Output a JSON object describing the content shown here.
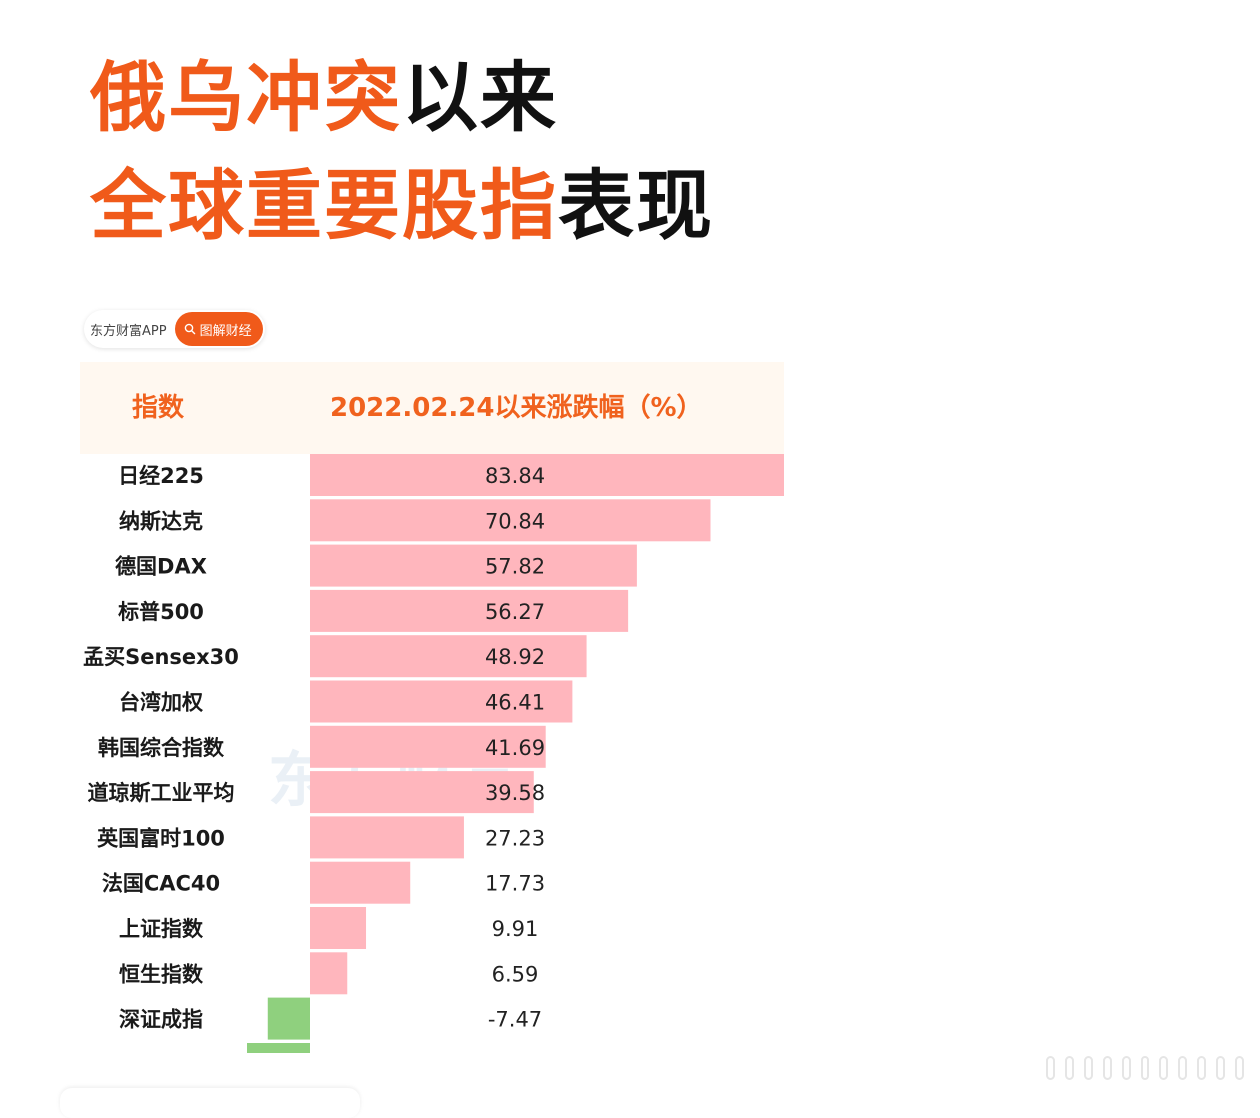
{
  "headline": {
    "line1_highlight": "俄乌冲突",
    "line1_rest": "以来",
    "line2_highlight": "全球重要股指",
    "line2_rest": "表现"
  },
  "source": {
    "app_name": "东方财富APP",
    "pill_label": "图解财经",
    "pill_icon": "search-icon"
  },
  "watermark": "东方财富",
  "colors": {
    "accent": "#f05a1a",
    "positive_bar": "#ffb6bd",
    "negative_bar": "#8fd07e"
  },
  "chart_data": {
    "type": "bar",
    "orientation": "horizontal",
    "columns": [
      "指数",
      "2022.02.24以来涨跌幅（%）"
    ],
    "categories": [
      "日经225",
      "纳斯达克",
      "德国DAX",
      "标普500",
      "孟买Sensex30",
      "台湾加权",
      "韩国综合指数",
      "道琼斯工业平均",
      "英国富时100",
      "法国CAC40",
      "上证指数",
      "恒生指数",
      "深证成指"
    ],
    "values": [
      83.84,
      70.84,
      57.82,
      56.27,
      48.92,
      46.41,
      41.69,
      39.58,
      27.23,
      17.73,
      9.91,
      6.59,
      -7.47
    ],
    "value_labels": [
      "83.84",
      "70.84",
      "57.82",
      "56.27",
      "48.92",
      "46.41",
      "41.69",
      "39.58",
      "27.23",
      "17.73",
      "9.91",
      "6.59",
      "-7.47"
    ]
  }
}
